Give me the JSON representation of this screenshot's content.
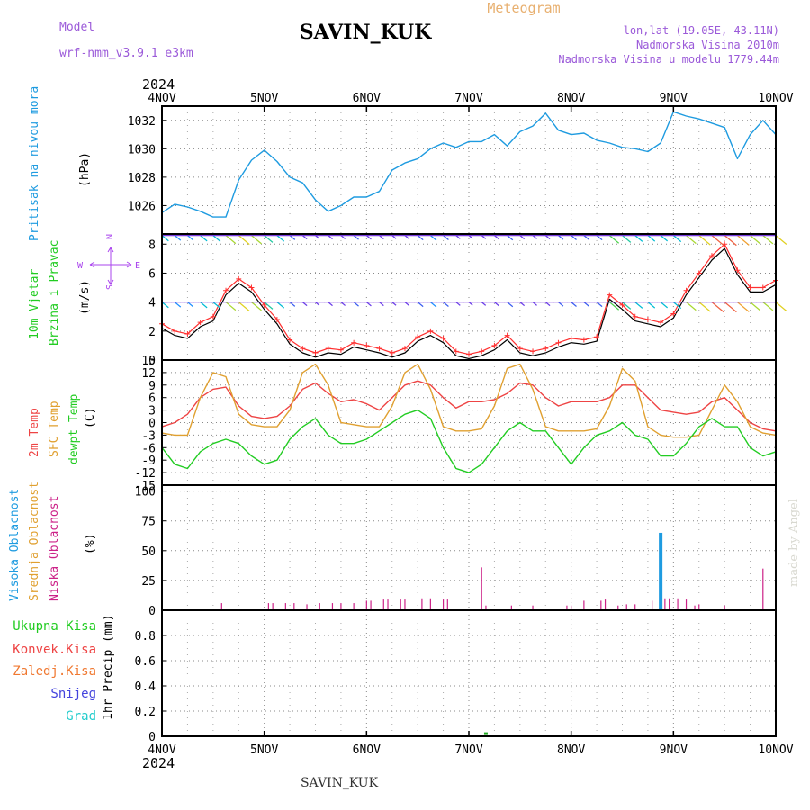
{
  "header": {
    "model_label": "Model",
    "model_name": "wrf-nmm_v3.9.1  e3km",
    "station": "SAVIN_KUK",
    "meteogram": "Meteogram",
    "lonlat": "lon,lat (19.05E, 43.11N)",
    "elev": "Nadmorska Visina 2010m",
    "elev_model": "Nadmorska Visina u modelu 1779.44m",
    "year": "2024",
    "footer_station": "SAVIN_KUK",
    "credit": "made by Angel"
  },
  "colors": {
    "pressure": "#1e9be0",
    "wind_speed": "#ff3030",
    "wind_speed_alt": "#000000",
    "t2m": "#ee4444",
    "sfc": "#e0a030",
    "dew": "#22cc22",
    "cloud_high": "#1e9be0",
    "cloud_low": "#cc2288",
    "precip": "#22aa22"
  },
  "chart_data": [
    {
      "type": "line",
      "panel": "pressure",
      "ylabel": [
        "Pritisak na nivou mora",
        "(hPa)"
      ],
      "ylim": [
        1024,
        1033
      ],
      "yticks": [
        1026,
        1028,
        1030,
        1032
      ],
      "x_hours": [
        0,
        3,
        6,
        9,
        12,
        15,
        18,
        21,
        24,
        27,
        30,
        33,
        36,
        39,
        42,
        45,
        48,
        51,
        54,
        57,
        60,
        63,
        66,
        69,
        72,
        75,
        78,
        81,
        84,
        87,
        90,
        93,
        96,
        99,
        102,
        105,
        108,
        111,
        114,
        117,
        120,
        123,
        126,
        129,
        132,
        135,
        138,
        141,
        144
      ],
      "values": [
        1025.5,
        1026.1,
        1025.9,
        1025.6,
        1025.2,
        1025.2,
        1027.8,
        1029.2,
        1029.9,
        1029.1,
        1028.0,
        1027.6,
        1026.4,
        1025.6,
        1026.0,
        1026.6,
        1026.6,
        1027.0,
        1028.5,
        1029.0,
        1029.3,
        1030.0,
        1030.4,
        1030.1,
        1030.5,
        1030.5,
        1031.0,
        1030.2,
        1031.2,
        1031.6,
        1032.5,
        1031.3,
        1031.0,
        1031.1,
        1030.6,
        1030.4,
        1030.1,
        1030.0,
        1029.8,
        1030.4,
        1032.6,
        1032.3,
        1032.1,
        1031.8,
        1031.5,
        1029.3,
        1031.0,
        1032.0,
        1031.0
      ]
    },
    {
      "type": "line",
      "panel": "wind",
      "ylabel": [
        "10m Vjetar",
        "Brzina i Pravac",
        "(m/s)"
      ],
      "compass": [
        "N",
        "W",
        "E",
        "S"
      ],
      "ylim": [
        0,
        8.7
      ],
      "yticks": [
        0,
        2,
        4,
        6,
        8
      ],
      "series": [
        {
          "name": "speed",
          "x_hours": [
            0,
            3,
            6,
            9,
            12,
            15,
            18,
            21,
            24,
            27,
            30,
            33,
            36,
            39,
            42,
            45,
            48,
            51,
            54,
            57,
            60,
            63,
            66,
            69,
            72,
            75,
            78,
            81,
            84,
            87,
            90,
            93,
            96,
            99,
            102,
            105,
            108,
            111,
            114,
            117,
            120,
            123,
            126,
            129,
            132,
            135,
            138,
            141,
            144
          ],
          "values": [
            2.5,
            2.0,
            1.8,
            2.6,
            3.0,
            4.8,
            5.6,
            5.0,
            3.8,
            2.8,
            1.4,
            0.8,
            0.5,
            0.8,
            0.7,
            1.2,
            1.0,
            0.8,
            0.5,
            0.8,
            1.6,
            2.0,
            1.5,
            0.6,
            0.4,
            0.6,
            1.0,
            1.7,
            0.8,
            0.6,
            0.8,
            1.2,
            1.5,
            1.4,
            1.6,
            4.5,
            3.8,
            3.0,
            2.8,
            2.6,
            3.2,
            4.8,
            6.0,
            7.2,
            8.0,
            6.2,
            5.0,
            5.0,
            5.5
          ]
        }
      ],
      "wind_dirs": [
        "N",
        "N",
        "N",
        "N",
        "N",
        "N",
        "N",
        "N",
        "N",
        "N",
        "NNW",
        "NW",
        "NW",
        "NW",
        "NW",
        "NW",
        "N",
        "N",
        "N",
        "N",
        "N",
        "N",
        "N",
        "N",
        "N",
        "N",
        "N",
        "N",
        "N",
        "N",
        "N",
        "N",
        "N",
        "N",
        "N",
        "NNE",
        "NE",
        "NE",
        "NE",
        "NE",
        "NE",
        "NE",
        "NE",
        "ENE",
        "NE",
        "NE",
        "NE",
        "NE",
        "NE"
      ]
    },
    {
      "type": "line",
      "panel": "temperature",
      "ylabel": [
        "2m Temp",
        "SFC Temp",
        "dewpt Temp",
        "(C)"
      ],
      "ylim": [
        -15,
        15
      ],
      "yticks": [
        -15,
        -12,
        -9,
        -6,
        -3,
        0,
        3,
        6,
        9,
        12,
        15
      ],
      "x_hours": [
        0,
        3,
        6,
        9,
        12,
        15,
        18,
        21,
        24,
        27,
        30,
        33,
        36,
        39,
        42,
        45,
        48,
        51,
        54,
        57,
        60,
        63,
        66,
        69,
        72,
        75,
        78,
        81,
        84,
        87,
        90,
        93,
        96,
        99,
        102,
        105,
        108,
        111,
        114,
        117,
        120,
        123,
        126,
        129,
        132,
        135,
        138,
        141,
        144
      ],
      "series": [
        {
          "name": "2m Temp",
          "values": [
            -1,
            0,
            2,
            6,
            8,
            8.5,
            4,
            1.5,
            1,
            1.5,
            4,
            8,
            9.5,
            7,
            5,
            5.5,
            4.5,
            3,
            6,
            9,
            10,
            9,
            6,
            3.5,
            5,
            5,
            5.5,
            7,
            9.5,
            9,
            6,
            4,
            5,
            5,
            5,
            6,
            9,
            9,
            6,
            3,
            2.5,
            2,
            2.5,
            5,
            6,
            3,
            0,
            -1.5,
            -2
          ]
        },
        {
          "name": "SFC Temp",
          "values": [
            -2.5,
            -3,
            -3,
            6,
            12,
            11,
            2,
            -0.5,
            -1,
            -1,
            3,
            12,
            14,
            9,
            0,
            -0.5,
            -1,
            -1,
            4,
            12,
            14,
            8,
            -1,
            -2,
            -2,
            -1.5,
            4,
            13,
            14,
            8,
            -1,
            -2,
            -2,
            -2,
            -1.5,
            4,
            13,
            10,
            -1,
            -3,
            -3.5,
            -3.5,
            -3,
            3,
            9,
            5,
            -1,
            -2.5,
            -3
          ]
        },
        {
          "name": "dewpt Temp",
          "values": [
            -6,
            -10,
            -11,
            -7,
            -5,
            -4,
            -5,
            -8,
            -10,
            -9,
            -4,
            -1,
            1,
            -3,
            -5,
            -5,
            -4,
            -2,
            0,
            2,
            3,
            1,
            -6,
            -11,
            -12,
            -10,
            -6,
            -2,
            0,
            -2,
            -2,
            -6,
            -10,
            -6,
            -3,
            -2,
            0,
            -3,
            -4,
            -8,
            -8,
            -5,
            -1,
            1,
            -1,
            -1,
            -6,
            -8,
            -7
          ]
        }
      ]
    },
    {
      "type": "bar",
      "panel": "cloud",
      "ylabel": [
        "Visoka Oblacnost",
        "Srednja Oblacnost",
        "Niska Oblacnost",
        "(%)"
      ],
      "ylim": [
        0,
        105
      ],
      "yticks": [
        0,
        25,
        50,
        75,
        100
      ],
      "series": [
        {
          "name": "Visoka Oblacnost",
          "x_hours": [
            117
          ],
          "values": [
            65
          ]
        },
        {
          "name": "Niska Oblacnost",
          "x_hours": [
            14,
            25,
            26,
            29,
            31,
            34,
            37,
            40,
            42,
            45,
            48,
            49,
            52,
            53,
            56,
            57,
            61,
            63,
            66,
            67,
            75,
            76,
            82,
            87,
            95,
            96,
            99,
            103,
            104,
            107,
            109,
            111,
            115,
            118,
            119,
            121,
            123,
            125,
            126,
            132,
            141
          ],
          "values": [
            6,
            6,
            6,
            6,
            6,
            5,
            6,
            6,
            6,
            6,
            8,
            8,
            9,
            9,
            9,
            9,
            10,
            10,
            9,
            9,
            36,
            4,
            4,
            4,
            4,
            4,
            8,
            8,
            9,
            4,
            5,
            5,
            8,
            10,
            10,
            10,
            9,
            4,
            5,
            4,
            35
          ]
        }
      ]
    },
    {
      "type": "bar",
      "panel": "precip",
      "ylabel": [
        "Ukupna Kisa",
        "Konvek.Kisa",
        "Zaledj.Kisa",
        "Snijeg",
        "Grad",
        "1hr Precip (mm)"
      ],
      "ylim": [
        0,
        1
      ],
      "yticks": [
        0,
        0.2,
        0.4,
        0.6,
        0.8
      ],
      "series": [
        {
          "name": "Ukupna Kisa",
          "x_hours": [
            76
          ],
          "values": [
            0.01
          ]
        }
      ]
    }
  ],
  "x_axis": {
    "labels": [
      "4NOV",
      "5NOV",
      "6NOV",
      "7NOV",
      "8NOV",
      "9NOV",
      "10NOV"
    ],
    "range_hours": [
      0,
      144
    ]
  }
}
